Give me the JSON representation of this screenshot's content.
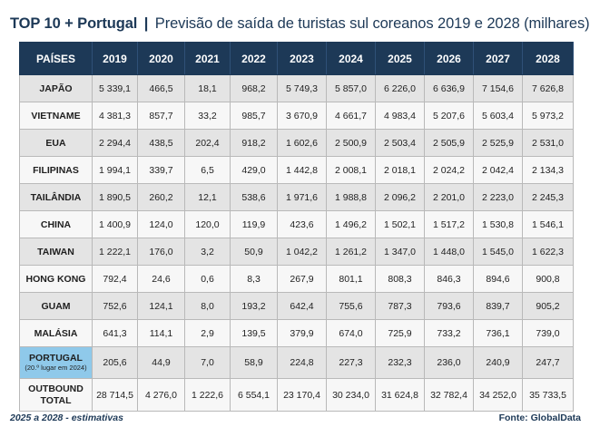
{
  "title": {
    "bold": "TOP 10 + Portugal",
    "separator": "|",
    "subtitle": "Previsão de saída de turistas sul coreanos 2019 e 2028 (milhares)"
  },
  "chart_data": {
    "type": "table",
    "columns": [
      "PAÍSES",
      "2019",
      "2020",
      "2021",
      "2022",
      "2023",
      "2024",
      "2025",
      "2026",
      "2027",
      "2028"
    ],
    "rows": [
      {
        "country": "JAPÃO",
        "note": "",
        "values": [
          "5 339,1",
          "466,5",
          "18,1",
          "968,2",
          "5 749,3",
          "5 857,0",
          "6 226,0",
          "6 636,9",
          "7 154,6",
          "7 626,8"
        ]
      },
      {
        "country": "VIETNAME",
        "note": "",
        "values": [
          "4 381,3",
          "857,7",
          "33,2",
          "985,7",
          "3 670,9",
          "4 661,7",
          "4 983,4",
          "5 207,6",
          "5 603,4",
          "5 973,2"
        ]
      },
      {
        "country": "EUA",
        "note": "",
        "values": [
          "2 294,4",
          "438,5",
          "202,4",
          "918,2",
          "1 602,6",
          "2 500,9",
          "2 503,4",
          "2 505,9",
          "2 525,9",
          "2 531,0"
        ]
      },
      {
        "country": "FILIPINAS",
        "note": "",
        "values": [
          "1 994,1",
          "339,7",
          "6,5",
          "429,0",
          "1 442,8",
          "2 008,1",
          "2 018,1",
          "2 024,2",
          "2 042,4",
          "2 134,3"
        ]
      },
      {
        "country": "TAILÂNDIA",
        "note": "",
        "values": [
          "1 890,5",
          "260,2",
          "12,1",
          "538,6",
          "1 971,6",
          "1 988,8",
          "2 096,2",
          "2 201,0",
          "2 223,0",
          "2 245,3"
        ]
      },
      {
        "country": "CHINA",
        "note": "",
        "values": [
          "1 400,9",
          "124,0",
          "120,0",
          "119,9",
          "423,6",
          "1 496,2",
          "1 502,1",
          "1 517,2",
          "1 530,8",
          "1 546,1"
        ]
      },
      {
        "country": "TAIWAN",
        "note": "",
        "values": [
          "1 222,1",
          "176,0",
          "3,2",
          "50,9",
          "1 042,2",
          "1 261,2",
          "1 347,0",
          "1 448,0",
          "1 545,0",
          "1 622,3"
        ]
      },
      {
        "country": "HONG KONG",
        "note": "",
        "values": [
          "792,4",
          "24,6",
          "0,6",
          "8,3",
          "267,9",
          "801,1",
          "808,3",
          "846,3",
          "894,6",
          "900,8"
        ]
      },
      {
        "country": "GUAM",
        "note": "",
        "values": [
          "752,6",
          "124,1",
          "8,0",
          "193,2",
          "642,4",
          "755,6",
          "787,3",
          "793,6",
          "839,7",
          "905,2"
        ]
      },
      {
        "country": "MALÁSIA",
        "note": "",
        "values": [
          "641,3",
          "114,1",
          "2,9",
          "139,5",
          "379,9",
          "674,0",
          "725,9",
          "733,2",
          "736,1",
          "739,0"
        ]
      },
      {
        "country": "PORTUGAL",
        "note": "(20.º lugar em 2024)",
        "values": [
          "205,6",
          "44,9",
          "7,0",
          "58,9",
          "224,8",
          "227,3",
          "232,3",
          "236,0",
          "240,9",
          "247,7"
        ]
      },
      {
        "country": "OUTBOUND TOTAL",
        "note": "",
        "values": [
          "28 714,5",
          "4 276,0",
          "1 222,6",
          "6 554,1",
          "23 170,4",
          "30 234,0",
          "31 624,8",
          "32 782,4",
          "34 252,0",
          "35 733,5"
        ]
      }
    ]
  },
  "footer": {
    "note": "2025 a 2028 - estimativas",
    "source": "Fonte: GlobalData"
  },
  "colors": {
    "header_bg": "#1d3957",
    "portugal_highlight": "#8fc9ea",
    "row_dark": "#e4e4e4",
    "row_light": "#f7f7f7"
  }
}
